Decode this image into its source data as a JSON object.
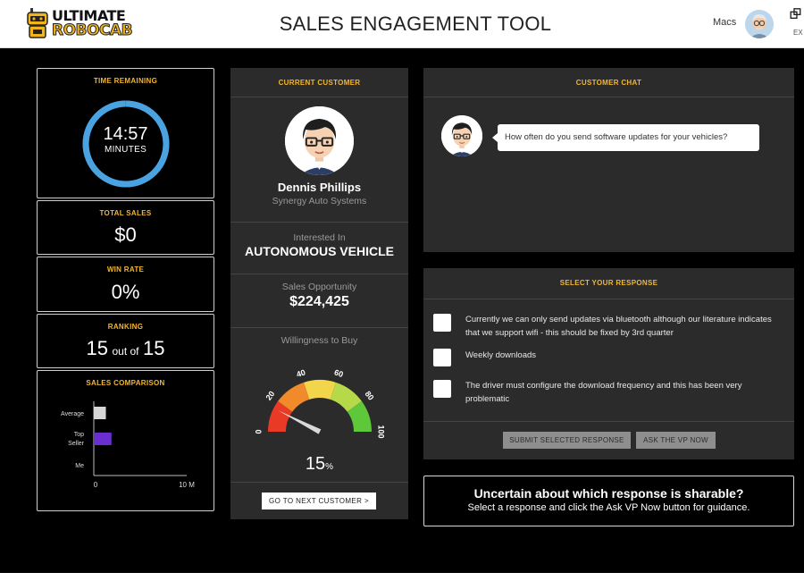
{
  "header": {
    "logo_line1": "ULTIMATE",
    "logo_line2": "ROBOCAB",
    "title": "SALES ENGAGEMENT TOOL",
    "user_name": "Macs",
    "exit_label": "EX"
  },
  "timer": {
    "title": "TIME REMAINING",
    "time": "14:57",
    "unit": "MINUTES",
    "progress": 0.997
  },
  "total_sales": {
    "title": "TOTAL SALES",
    "value": "$0"
  },
  "win_rate": {
    "title": "WIN RATE",
    "value": "0%"
  },
  "ranking": {
    "title": "RANKING",
    "rank": "15",
    "out_of": "out of",
    "total": "15"
  },
  "sales_comparison": {
    "title": "SALES COMPARISON",
    "chart_data": {
      "type": "bar",
      "orientation": "horizontal",
      "categories": [
        "Average",
        "Top Seller",
        "Me"
      ],
      "values": [
        1.3,
        1.9,
        0
      ],
      "colors": [
        "#d6d6d6",
        "#6a2fd1",
        "#d6d6d6"
      ],
      "xlim": [
        0,
        10
      ],
      "x_tick_labels": [
        "0",
        "10 M"
      ]
    }
  },
  "customer": {
    "title": "CURRENT CUSTOMER",
    "name": "Dennis Phillips",
    "company": "Synergy Auto Systems",
    "interest_label": "Interested In",
    "interest_value": "AUTONOMOUS VEHICLE",
    "opportunity_label": "Sales Opportunity",
    "opportunity_value": "$224,425",
    "willingness_label": "Willingness to Buy",
    "willingness_value": "15",
    "willingness_unit": "%",
    "willingness": 15,
    "gauge_ticks": [
      "0",
      "20",
      "40",
      "60",
      "80",
      "100"
    ],
    "gauge_colors": [
      "#e83a24",
      "#f08a2a",
      "#f2d54a",
      "#b6d94a",
      "#5fc73a"
    ],
    "next_button": "GO TO NEXT CUSTOMER >"
  },
  "chat": {
    "title": "CUSTOMER CHAT",
    "message": "How often do you send software updates for your vehicles?"
  },
  "response": {
    "title": "SELECT YOUR RESPONSE",
    "options": [
      "Currently we can only send updates via bluetooth although our literature indicates that we support wifi - this should be fixed by 3rd quarter",
      "Weekly downloads",
      "The driver must configure the download frequency and this has been very problematic"
    ],
    "submit_button": "SUBMIT SELECTED RESPONSE",
    "vp_button": "ASK THE VP NOW"
  },
  "guidance": {
    "headline": "Uncertain about which response is sharable?",
    "text": "Select a response and click the Ask VP Now button for guidance."
  }
}
